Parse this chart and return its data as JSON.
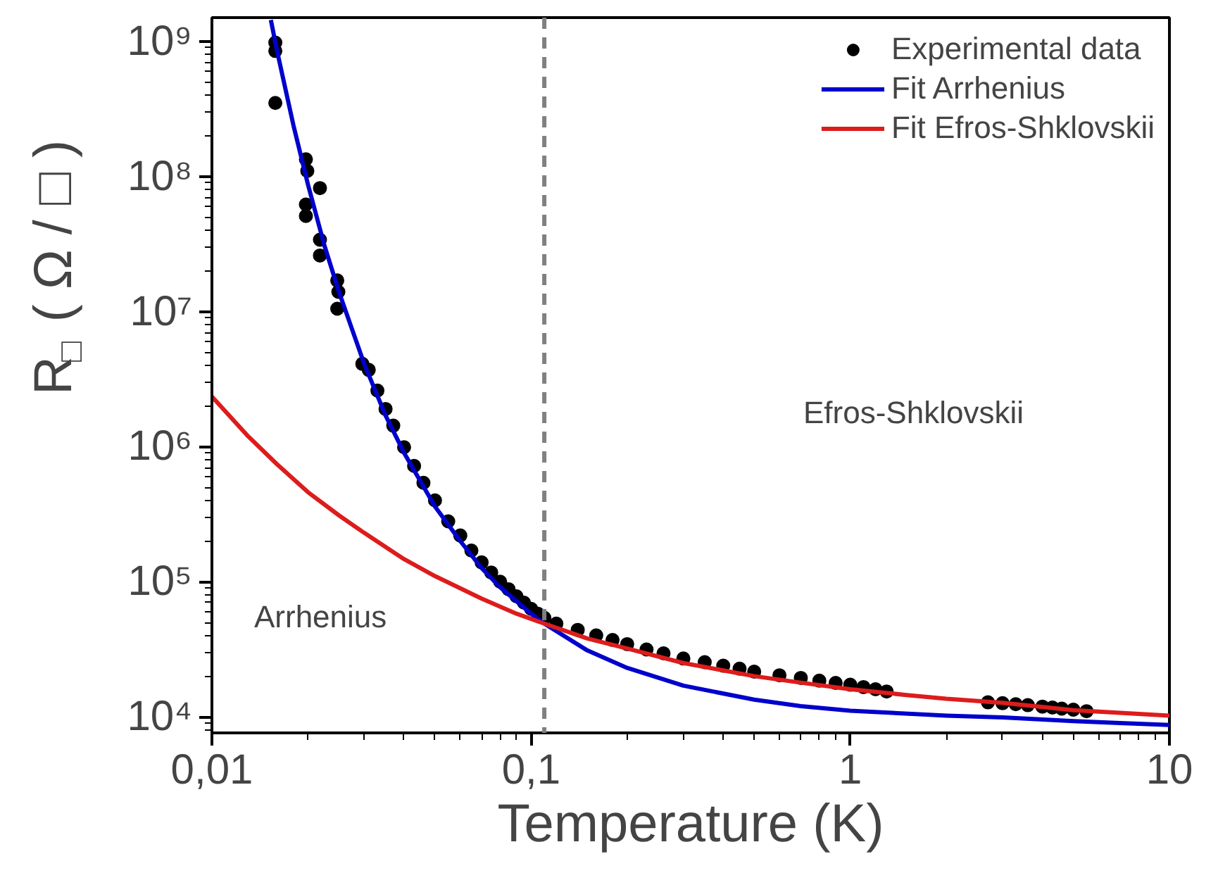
{
  "chart_data": {
    "type": "line",
    "xlabel": "Temperature (K)",
    "ylabel": "R$_{□}$ ( Ω / □ )",
    "log": "xy",
    "xlim": [
      0.01,
      10
    ],
    "ylim": [
      7600,
      1500000000
    ],
    "xticks": [
      {
        "value": 0.01,
        "label": "0,01"
      },
      {
        "value": 0.1,
        "label": "0,1"
      },
      1,
      10
    ],
    "yticks": [
      {
        "value": 10000,
        "label": "10⁴"
      },
      {
        "value": 100000,
        "label": "10⁵"
      },
      {
        "value": 1000000,
        "label": "10⁶"
      },
      {
        "value": 10000000,
        "label": "10⁷"
      },
      {
        "value": 100000000,
        "label": "10⁸"
      },
      {
        "value": 1000000000,
        "label": "10⁹"
      }
    ],
    "grid": false,
    "legend": "top right",
    "series": [
      {
        "name": "Experimental data",
        "type": "scatter",
        "marker": "circle",
        "color": "#000000",
        "x": [
          0.0158,
          0.0158,
          0.0158,
          0.0197,
          0.0199,
          0.0218,
          0.0197,
          0.0197,
          0.0218,
          0.0218,
          0.0247,
          0.0249,
          0.0247,
          0.0296,
          0.031,
          0.033,
          0.035,
          0.037,
          0.04,
          0.043,
          0.046,
          0.05,
          0.055,
          0.06,
          0.065,
          0.07,
          0.075,
          0.08,
          0.085,
          0.09,
          0.095,
          0.1,
          0.105,
          0.11,
          0.12,
          0.14,
          0.16,
          0.18,
          0.2,
          0.23,
          0.26,
          0.3,
          0.35,
          0.4,
          0.45,
          0.5,
          0.6,
          0.7,
          0.8,
          0.9,
          1,
          1.1,
          1.2,
          1.3,
          2.7,
          3,
          3.3,
          3.6,
          4,
          4.3,
          4.6,
          5,
          5.5
        ],
        "values": [
          980000000,
          850000000,
          350000000,
          134000000,
          110000000,
          82000000,
          62000000,
          51000000,
          34000000,
          26000000,
          17000000,
          14000000,
          10500000,
          4100000,
          3700000,
          2600000,
          1900000,
          1430000,
          990000,
          720000,
          540000,
          400000,
          280000,
          220000,
          170000,
          139000,
          117000,
          100000,
          88000,
          78000,
          70000,
          63000,
          58000,
          54000,
          49000,
          44000,
          40000,
          37000,
          34500,
          31500,
          29500,
          27000,
          25400,
          23900,
          22700,
          21600,
          20300,
          19400,
          18500,
          17800,
          17300,
          16600,
          16000,
          15400,
          12800,
          12600,
          12400,
          12200,
          11900,
          11700,
          11500,
          11300,
          11000
        ]
      },
      {
        "name": "Fit Arrhenius",
        "type": "line",
        "color": "#0000cc",
        "x": [
          0.0153,
          0.016,
          0.018,
          0.02,
          0.0225,
          0.025,
          0.03,
          0.035,
          0.04,
          0.05,
          0.06,
          0.07,
          0.08,
          0.1,
          0.11,
          0.15,
          0.2,
          0.3,
          0.5,
          0.7,
          1,
          2,
          3,
          5,
          7,
          10
        ],
        "values": [
          1440000000,
          850000000,
          240000000,
          87000000,
          31000000,
          14000000,
          4100000,
          1700000,
          900000,
          360000,
          200000,
          126000,
          91000,
          58000,
          49000,
          31000,
          23000,
          17000,
          13400,
          12000,
          11100,
          10200,
          9900,
          9300,
          9000,
          8700
        ]
      },
      {
        "name": "Fit Efros-Shklovskii",
        "type": "line",
        "color": "#dd1c1c",
        "x": [
          0.01,
          0.013,
          0.016,
          0.02,
          0.025,
          0.03,
          0.04,
          0.05,
          0.07,
          0.09,
          0.11,
          0.15,
          0.2,
          0.3,
          0.5,
          0.7,
          1,
          1.5,
          2,
          3,
          5,
          7,
          10
        ],
        "values": [
          2350000,
          1190000,
          740000,
          460000,
          310000,
          230000,
          147000,
          110000,
          75000,
          58000,
          49000,
          38000,
          32000,
          25000,
          20000,
          17900,
          16000,
          14500,
          13600,
          12700,
          11200,
          10700,
          10200
        ]
      }
    ],
    "ref_lines": [
      {
        "axis": "x",
        "value": 0.11,
        "color": "#808080",
        "line_style": "dashed"
      }
    ],
    "annotations": [
      "Arrhenius",
      "Efros-Shklovskii"
    ]
  }
}
